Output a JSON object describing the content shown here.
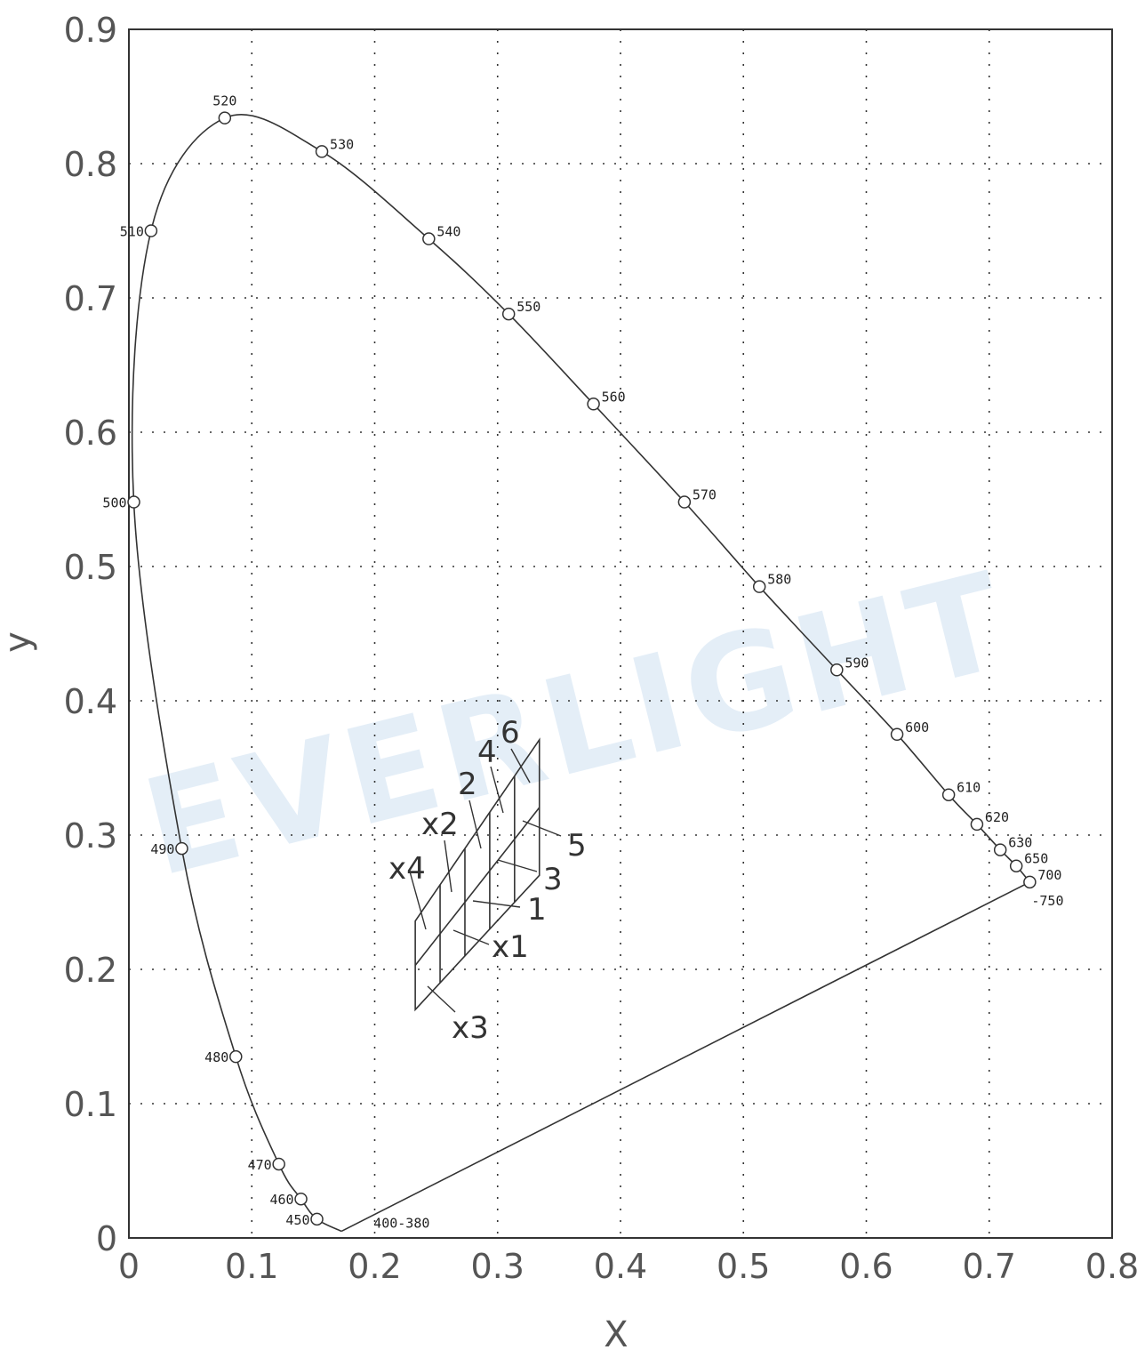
{
  "watermark": "EVERLIGHT",
  "chart_data": {
    "type": "line",
    "title": "",
    "xlabel": "X",
    "ylabel": "y",
    "xlim": [
      0,
      0.8
    ],
    "ylim": [
      0,
      0.9
    ],
    "grid": true,
    "x_ticks": [
      {
        "value": 0,
        "label": "0"
      },
      {
        "value": 0.1,
        "label": "0.1"
      },
      {
        "value": 0.2,
        "label": "0.2"
      },
      {
        "value": 0.3,
        "label": "0.3"
      },
      {
        "value": 0.4,
        "label": "0.4"
      },
      {
        "value": 0.5,
        "label": "0.5"
      },
      {
        "value": 0.6,
        "label": "0.6"
      },
      {
        "value": 0.7,
        "label": "0.7"
      },
      {
        "value": 0.8,
        "label": "0.8"
      }
    ],
    "y_ticks": [
      {
        "value": 0,
        "label": "0"
      },
      {
        "value": 0.1,
        "label": "0.1"
      },
      {
        "value": 0.2,
        "label": "0.2"
      },
      {
        "value": 0.3,
        "label": "0.3"
      },
      {
        "value": 0.4,
        "label": "0.4"
      },
      {
        "value": 0.5,
        "label": "0.5"
      },
      {
        "value": 0.6,
        "label": "0.6"
      },
      {
        "value": 0.7,
        "label": "0.7"
      },
      {
        "value": 0.8,
        "label": "0.8"
      },
      {
        "value": 0.9,
        "label": "0.9"
      }
    ],
    "spectral_locus": [
      {
        "label": "450",
        "x": 0.153,
        "y": 0.014
      },
      {
        "label": "460",
        "x": 0.14,
        "y": 0.029
      },
      {
        "label": "470",
        "x": 0.122,
        "y": 0.055
      },
      {
        "label": "480",
        "x": 0.087,
        "y": 0.135
      },
      {
        "label": "490",
        "x": 0.043,
        "y": 0.29
      },
      {
        "label": "500",
        "x": 0.004,
        "y": 0.548
      },
      {
        "label": "510",
        "x": 0.018,
        "y": 0.75
      },
      {
        "label": "520",
        "x": 0.078,
        "y": 0.834
      },
      {
        "label": "530",
        "x": 0.157,
        "y": 0.809
      },
      {
        "label": "540",
        "x": 0.244,
        "y": 0.744
      },
      {
        "label": "550",
        "x": 0.309,
        "y": 0.688
      },
      {
        "label": "560",
        "x": 0.378,
        "y": 0.621
      },
      {
        "label": "570",
        "x": 0.452,
        "y": 0.548
      },
      {
        "label": "580",
        "x": 0.513,
        "y": 0.485
      },
      {
        "label": "590",
        "x": 0.576,
        "y": 0.423
      },
      {
        "label": "600",
        "x": 0.625,
        "y": 0.375
      },
      {
        "label": "610",
        "x": 0.667,
        "y": 0.33
      },
      {
        "label": "620",
        "x": 0.69,
        "y": 0.308
      },
      {
        "label": "630",
        "x": 0.709,
        "y": 0.289
      },
      {
        "label": "650",
        "x": 0.722,
        "y": 0.277
      },
      {
        "label": "700",
        "x": 0.733,
        "y": 0.265
      }
    ],
    "locus_end_labels": {
      "red": "-750",
      "violet": "400-380"
    },
    "purple_line": [
      {
        "x": 0.173,
        "y": 0.005
      },
      {
        "x": 0.733,
        "y": 0.265
      }
    ],
    "color_bins": {
      "cells": [
        "1",
        "2",
        "3",
        "4",
        "5",
        "6",
        "x1",
        "x2",
        "x3",
        "x4"
      ],
      "outline": [
        {
          "x": 0.233,
          "y": 0.17
        },
        {
          "x": 0.334,
          "y": 0.27
        },
        {
          "x": 0.334,
          "y": 0.371
        },
        {
          "x": 0.233,
          "y": 0.236
        }
      ]
    }
  }
}
